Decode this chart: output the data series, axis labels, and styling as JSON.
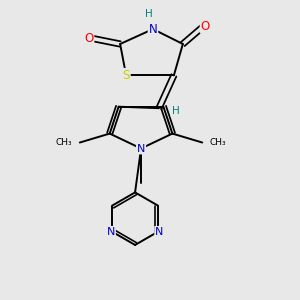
{
  "bg_color": "#e8e8e8",
  "bond_color": "#000000",
  "atom_colors": {
    "O": "#ff0000",
    "N": "#0000cc",
    "S": "#cccc00",
    "H": "#008080",
    "C": "#000000"
  }
}
